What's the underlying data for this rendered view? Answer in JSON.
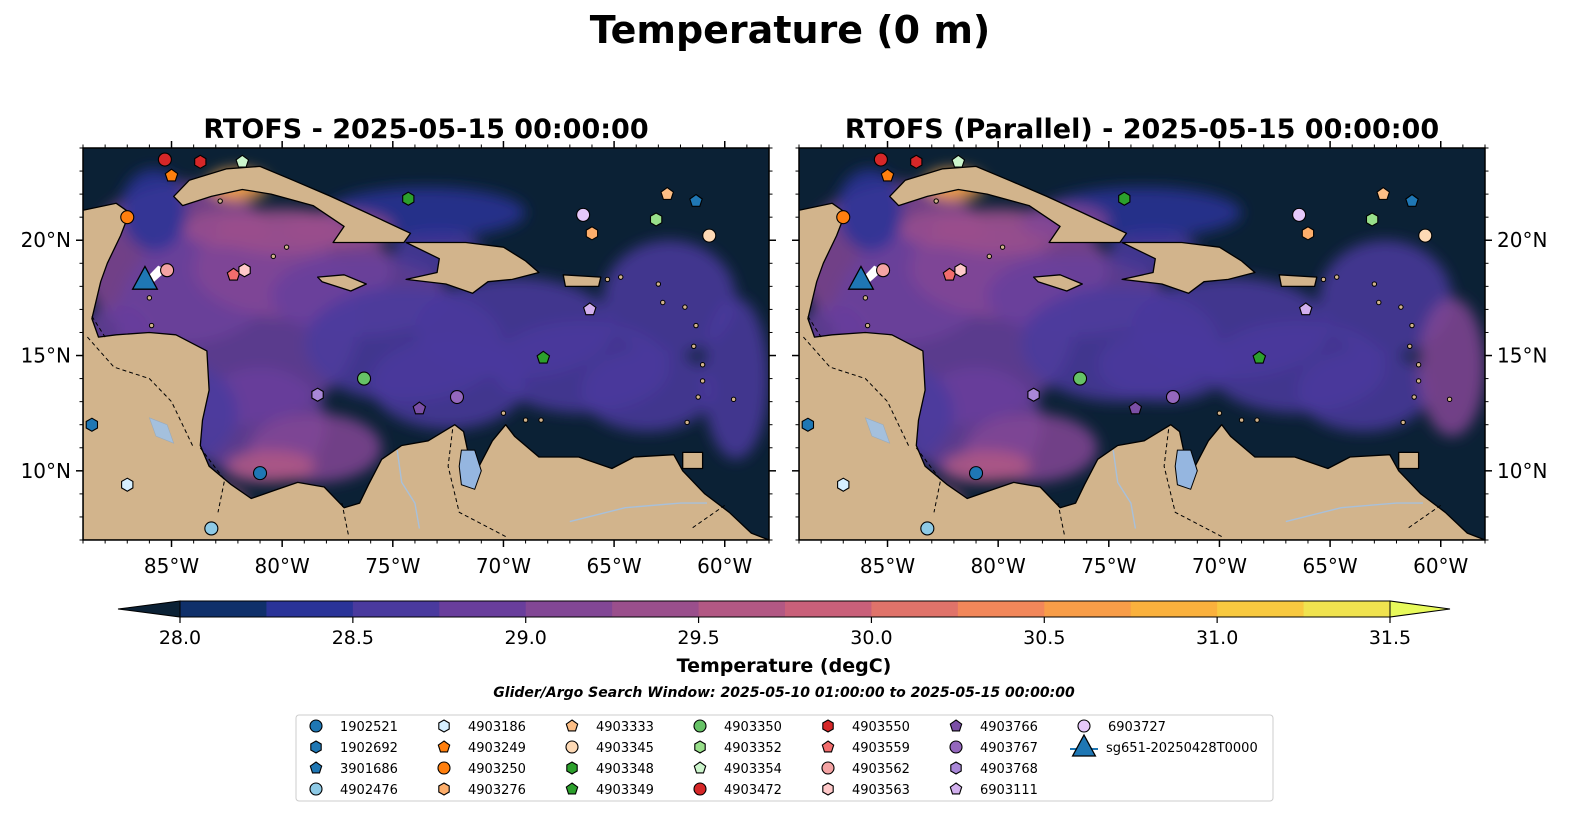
{
  "title": "Temperature (0 m)",
  "panels": [
    {
      "title": "RTOFS - 2025-05-15 00:00:00",
      "variant": "a"
    },
    {
      "title": "RTOFS (Parallel) - 2025-05-15 00:00:00",
      "variant": "b"
    }
  ],
  "map": {
    "lon_range": [
      -89,
      -58
    ],
    "lat_range": [
      7,
      24
    ],
    "lon_ticks": [
      "85°W",
      "80°W",
      "75°W",
      "70°W",
      "65°W",
      "60°W"
    ],
    "lon_tick_values": [
      -85,
      -80,
      -75,
      -70,
      -65,
      -60
    ],
    "lat_ticks": [
      "20°N",
      "15°N",
      "10°N"
    ],
    "lat_tick_values": [
      20,
      15,
      10
    ],
    "land_color": "#d2b48c",
    "ocean_base_color": "#0b2135"
  },
  "colorbar": {
    "label": "Temperature (degC)",
    "ticks": [
      "28.0",
      "28.5",
      "29.0",
      "29.5",
      "30.0",
      "30.5",
      "31.0",
      "31.5"
    ],
    "tick_values": [
      28.0,
      28.5,
      29.0,
      29.5,
      30.0,
      30.5,
      31.0,
      31.5
    ],
    "range": [
      28.0,
      31.5
    ],
    "colors": [
      "#0b2135",
      "#10306a",
      "#2a3398",
      "#4a3a9e",
      "#693e9c",
      "#824795",
      "#9a4f8c",
      "#b25884",
      "#c9607a",
      "#e0736a",
      "#f2875a",
      "#f89d48",
      "#fab13d",
      "#f8c940",
      "#f0e34f",
      "#e8fa5b"
    ]
  },
  "search_window": "Glider/Argo Search Window: 2025-05-10 01:00:00 to 2025-05-15 00:00:00",
  "platforms": [
    {
      "id": "1902521",
      "marker": "circle",
      "color": "#1f77b4",
      "lon": -81.0,
      "lat": 9.9
    },
    {
      "id": "1902692",
      "marker": "hexagon",
      "color": "#1f77b4",
      "lon": -88.6,
      "lat": 12.0
    },
    {
      "id": "3901686",
      "marker": "pentagon",
      "color": "#1f77b4",
      "lon": -61.3,
      "lat": 21.7
    },
    {
      "id": "4902476",
      "marker": "circle",
      "color": "#8ecae6",
      "lon": -83.2,
      "lat": 7.5
    },
    {
      "id": "4903186",
      "marker": "hexagon",
      "color": "#d6efff",
      "lon": -87.0,
      "lat": 9.4
    },
    {
      "id": "4903249",
      "marker": "pentagon",
      "color": "#ff7f0e",
      "lon": -85.0,
      "lat": 22.8
    },
    {
      "id": "4903250",
      "marker": "circle",
      "color": "#ff7f0e",
      "lon": -87.0,
      "lat": 21.0
    },
    {
      "id": "4903276",
      "marker": "hexagon",
      "color": "#fdae6b",
      "lon": -66.0,
      "lat": 20.3
    },
    {
      "id": "4903333",
      "marker": "pentagon",
      "color": "#fdbe85",
      "lon": -62.6,
      "lat": 22.0
    },
    {
      "id": "4903345",
      "marker": "circle",
      "color": "#fdd9b5",
      "lon": -60.7,
      "lat": 20.2
    },
    {
      "id": "4903348",
      "marker": "hexagon",
      "color": "#2ca02c",
      "lon": -74.3,
      "lat": 21.8
    },
    {
      "id": "4903349",
      "marker": "pentagon",
      "color": "#2ca02c",
      "lon": -68.2,
      "lat": 14.9
    },
    {
      "id": "4903350",
      "marker": "circle",
      "color": "#66c266",
      "lon": -76.3,
      "lat": 14.0
    },
    {
      "id": "4903352",
      "marker": "hexagon",
      "color": "#98df8a",
      "lon": -63.1,
      "lat": 20.9
    },
    {
      "id": "4903354",
      "marker": "pentagon",
      "color": "#ccf5cc",
      "lon": -81.8,
      "lat": 23.4
    },
    {
      "id": "4903472",
      "marker": "circle",
      "color": "#d62728",
      "lon": -85.3,
      "lat": 23.5
    },
    {
      "id": "4903550",
      "marker": "hexagon",
      "color": "#d62728",
      "lon": -83.7,
      "lat": 23.4
    },
    {
      "id": "4903559",
      "marker": "pentagon",
      "color": "#f26d6d",
      "lon": -82.2,
      "lat": 18.5
    },
    {
      "id": "4903562",
      "marker": "circle",
      "color": "#f4a3a3",
      "lon": -85.2,
      "lat": 18.7
    },
    {
      "id": "4903563",
      "marker": "hexagon",
      "color": "#ffc9c9",
      "lon": -81.7,
      "lat": 18.7
    },
    {
      "id": "4903766",
      "marker": "pentagon",
      "color": "#7b4fa6",
      "lon": -73.8,
      "lat": 12.7
    },
    {
      "id": "4903767",
      "marker": "circle",
      "color": "#9467bd",
      "lon": -72.1,
      "lat": 13.2
    },
    {
      "id": "4903768",
      "marker": "hexagon",
      "color": "#a987d8",
      "lon": -78.4,
      "lat": 13.3
    },
    {
      "id": "6903111",
      "marker": "pentagon",
      "color": "#d2b0ee",
      "lon": -66.1,
      "lat": 17.0
    },
    {
      "id": "6903727",
      "marker": "circle",
      "color": "#e6c8fa",
      "lon": -66.4,
      "lat": 21.1
    },
    {
      "id": "sg651-20250428T0000",
      "marker": "triangle",
      "color": "#1f77b4",
      "lon": -86.2,
      "lat": 18.3
    }
  ]
}
